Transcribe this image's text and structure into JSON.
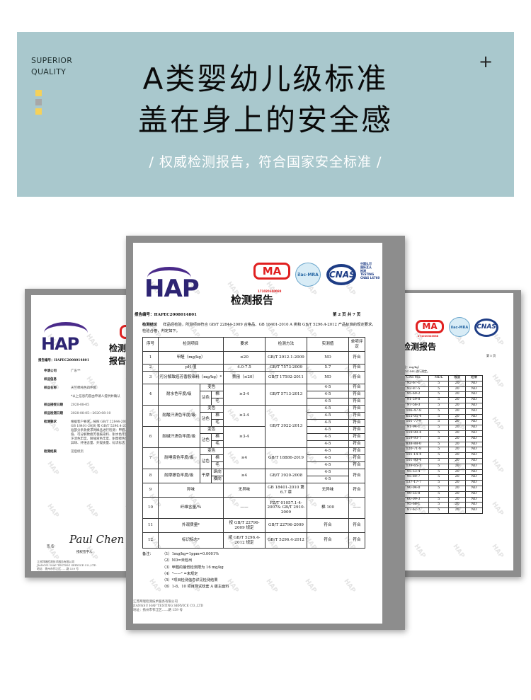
{
  "banner": {
    "tagline_line1": "SUPERIOR",
    "tagline_line2": "QUALITY",
    "title_line1": "A类婴幼儿级标准",
    "title_line2": "盖在身上的安全感",
    "subtitle": "/  权威检测报告，符合国家安全标准  /",
    "plus": "+",
    "background_color": "#a9c8cd",
    "square_colors": [
      "#f5d15a",
      "#a8a8a8",
      "#f5d15a"
    ]
  },
  "logos": {
    "hap": "HAP",
    "cma": "MA",
    "cma_number": "171020340088",
    "ilac": "ilac-MRA",
    "cnas": "CNAS",
    "cnas_text": [
      "中国认可",
      "国际互认",
      "检测",
      "TESTING",
      "CNAS L6760"
    ]
  },
  "main_report": {
    "title": "检测报告",
    "report_no_label": "报告编号：",
    "report_no": "HAPEC2008014801",
    "page": "第 2 页 共 7 页",
    "conclusion_label": "检测结论",
    "conclusion": "样品经检验，所测项目符合 GB/T 22844-2009 合格品、GB 18401-2010 A 类和 GB/T 5296.4-2012 产品标准的规定要求，检验合格，判定如下。",
    "headers": [
      "序号",
      "检测项目",
      "要求",
      "检测方法",
      "实测值",
      "单项评定"
    ],
    "rows": [
      {
        "no": "1",
        "item": "甲醛（mg/kg）",
        "req": "≤20",
        "method": "GB/T 2912.1-2009",
        "values": [
          "ND"
        ],
        "verdicts": [
          "符合"
        ]
      },
      {
        "no": "2",
        "item": "pH 值",
        "req": "4.0-7.5",
        "method": "GB/T 7573-2009",
        "values": [
          "5.7"
        ],
        "verdicts": [
          "符合"
        ]
      },
      {
        "no": "3",
        "item": "可分解致癌芳香胺染料（mg/kg）*",
        "req": "禁用（≤20）",
        "method": "GB/T 17592-2011",
        "values": [
          "ND"
        ],
        "verdicts": [
          "符合"
        ]
      },
      {
        "no": "4",
        "item": "耐水色牢度/级",
        "sub_a": "变色",
        "sub_b": "沾色",
        "sub_c": [
          "棉",
          "毛"
        ],
        "req": "≥3-4",
        "method": "GB/T 5713-2013",
        "values": [
          "4-5",
          "4-5",
          "4-5"
        ],
        "verdicts": [
          "符合",
          "符合",
          "符合"
        ]
      },
      {
        "no": "5",
        "item": "耐酸汗渍色牢度/级",
        "sub_a": "变色",
        "sub_b": "沾色",
        "sub_c": [
          "棉",
          "毛"
        ],
        "req": "≥3-4",
        "method": "GB/T 3922-2013",
        "values": [
          "4-5",
          "4-5",
          "4-5"
        ],
        "verdicts": [
          "符合",
          "符合",
          "符合"
        ]
      },
      {
        "no": "6",
        "item": "耐碱汗渍色牢度/级",
        "sub_a": "变色",
        "sub_b": "沾色",
        "sub_c": [
          "棉",
          "毛"
        ],
        "req": "≥3-4",
        "values": [
          "4-5",
          "4-5",
          "4-5"
        ],
        "verdicts": [
          "符合",
          "符合",
          "符合"
        ]
      },
      {
        "no": "7",
        "item": "耐唾液色牢度/级",
        "sub_a": "变色",
        "sub_b": "沾色",
        "sub_c": [
          "棉",
          "毛"
        ],
        "req": "≥4",
        "method": "GB/T 18886-2019",
        "values": [
          "4-5",
          "4-5",
          "4-5"
        ],
        "verdicts": [
          "符合",
          "符合",
          "符合"
        ]
      },
      {
        "no": "8",
        "item": "耐摩擦色牢度/级",
        "sub_b": "干摩",
        "sub_c": [
          "纵向",
          "横向"
        ],
        "req": "≥4",
        "method": "GB/T 3920-2008",
        "values": [
          "4-5",
          "4-5"
        ],
        "verdicts": [
          "符合"
        ]
      },
      {
        "no": "9",
        "item": "异味",
        "req": "无异味",
        "method": "GB 18401-2010 第 6.7 章",
        "values": [
          "无异味"
        ],
        "verdicts": [
          "符合"
        ]
      },
      {
        "no": "10",
        "item": "纤维含量/%",
        "req": "——",
        "method": "FZ/T 01057.1-4-2007& GB/T 2910-2009",
        "values": [
          "棉 100"
        ],
        "verdicts": [
          "——"
        ]
      },
      {
        "no": "11",
        "item": "外观质量*",
        "req": "按 GB/T 22796-2009 规定",
        "method": "GB/T 22796-2009",
        "values": [
          "符合"
        ],
        "verdicts": [
          "符合"
        ]
      },
      {
        "no": "12",
        "item": "标识标志*",
        "req": "按 GB/T 5296.4-2012 规定",
        "method": "GB/T 5296.4-2012",
        "values": [
          "符合"
        ],
        "verdicts": [
          "符合"
        ]
      }
    ],
    "notes_label": "备注：",
    "notes": [
      "（1）1mg/kg=1ppm=0.0001%",
      "（2）ND=未检出",
      "（3）甲醛的最低检测限为 16 mg/kg",
      "（4）\"——\" =未规定",
      "（5）*项目检测信息详见检测结果",
      "（6）1-8、10 项目测试枕套 A 版主面料"
    ],
    "footer": [
      "江苏拜瑞检测技术服务有限公司",
      "JIANGSU HAP TESTING SERVICE CO.,LTD",
      "地址：扬州市邗江区……路 159 号"
    ]
  },
  "left_report": {
    "title": "检测报告",
    "report_no_label": "报告编号：",
    "report_no": "HAPEC2008014801",
    "fields": [
      {
        "label": "申请公司",
        "value": "广东**"
      },
      {
        "label": "样品信息",
        "value": ""
      },
      {
        "label": "样品名称",
        "value": "天竺棉纯色四件套"
      },
      {
        "label": "",
        "value": "*以上信息内容由申请人提供并确认"
      },
      {
        "label": "样品接受日期",
        "value": "2020-08-05"
      },
      {
        "label": "样品检测日期",
        "value": "2020-08-05—2020-08-10"
      },
      {
        "label": "检测要求",
        "value": "根据客户要求，按照 GB/T 22844-2009、GB 18401-2010 和 GB/T 5296.4-2012 标准部分条款要求对样品进行检测：甲醛、pH值、可分解致癌芳香胺染料、耐水色牢度、耐汗渍色牢度、耐唾液色牢度、耐摩擦色牢度、异味、纤维含量、外观质量、标识标志"
      },
      {
        "label": "检测结果",
        "value": "见后续页"
      }
    ],
    "signature": "Paul Chen",
    "signer_label": "授权签字人",
    "sign_prefix": "签  名：",
    "footer": [
      "江苏拜瑞检测技术服务有限公司",
      "JIANGSU HAP TESTING SERVICE CO.,LTD",
      "地址：扬州市邗江区……路 159 号"
    ]
  },
  "right_report": {
    "title": "检测报告",
    "page": "第 5 页",
    "unit_line": "（单位：mg/kg）",
    "method_line": "采用 GC-MS 进行测定。",
    "headers": [
      "CAS No.",
      "MDL",
      "限量",
      "结果"
    ],
    "rows": [
      [
        "92-67-1",
        "5",
        "20",
        "ND"
      ],
      [
        "92-87-5",
        "5",
        "20",
        "ND"
      ],
      [
        "95-69-2",
        "5",
        "20",
        "ND"
      ],
      [
        "91-59-8",
        "5",
        "20",
        "ND"
      ],
      [
        "97-56-3",
        "5",
        "20",
        "ND"
      ],
      [
        "106-47-8",
        "5",
        "20",
        "ND"
      ],
      [
        "615-05-4",
        "5",
        "20",
        "ND"
      ],
      [
        "101-77-9",
        "5",
        "20",
        "ND"
      ],
      [
        "91-94-1",
        "5",
        "20",
        "ND"
      ],
      [
        "119-90-4",
        "5",
        "20",
        "ND"
      ],
      [
        "119-93-7",
        "5",
        "20",
        "ND"
      ],
      [
        "838-88-0",
        "5",
        "20",
        "ND"
      ],
      [
        "120-71-8",
        "5",
        "20",
        "ND"
      ],
      [
        "101-14-4",
        "5",
        "20",
        "ND"
      ],
      [
        "101-80-4",
        "5",
        "20",
        "ND"
      ],
      [
        "139-65-1",
        "5",
        "20",
        "ND"
      ],
      [
        "95-53-4",
        "5",
        "20",
        "ND"
      ],
      [
        "95-80-7",
        "5",
        "20",
        "ND"
      ],
      [
        "137-17-7",
        "5",
        "20",
        "ND"
      ],
      [
        "90-04-0",
        "5",
        "20",
        "ND"
      ],
      [
        "99-55-8",
        "5",
        "20",
        "ND"
      ],
      [
        "60-09-3",
        "5",
        "20",
        "ND"
      ],
      [
        "95-68-1",
        "5",
        "20",
        "ND"
      ],
      [
        "87-62-7",
        "5",
        "20",
        "ND"
      ]
    ]
  }
}
